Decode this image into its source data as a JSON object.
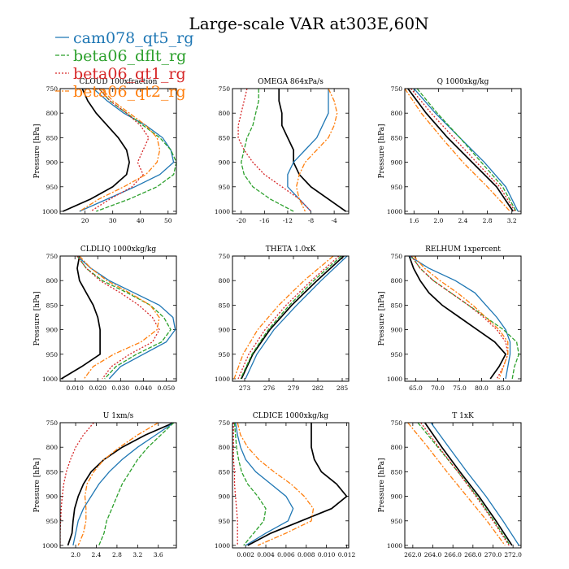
{
  "title": "Large-scale VAR at303E,60N",
  "legend": [
    {
      "name": "cam078_qt5_rg",
      "color": "#1f77b4"
    },
    {
      "name": "beta06_dflt_rg",
      "color": "#2ca02c"
    },
    {
      "name": "beta06_qt1_rg",
      "color": "#d62728"
    },
    {
      "name": "beta06_qt2_rg",
      "color": "#ff7f0e"
    }
  ],
  "control_color": "#000000",
  "chart_data": [
    {
      "type": "line",
      "title": "CLOUD 100xfraction",
      "ylabel": "Pressure [hPa]",
      "xlim": [
        11,
        53
      ],
      "ylim": [
        1005,
        750
      ],
      "xticks": [
        "20",
        "30",
        "40",
        "50"
      ],
      "xtick_values": [
        20,
        30,
        40,
        50
      ],
      "yticks": [
        750,
        800,
        850,
        900,
        950,
        1000
      ],
      "pressure": [
        750,
        775,
        800,
        825,
        850,
        875,
        900,
        925,
        950,
        975,
        1000
      ],
      "series": [
        {
          "color": "#000000",
          "values": [
            19,
            21,
            24,
            28,
            32,
            35,
            36,
            35,
            30,
            22,
            12
          ]
        },
        {
          "color": "#1f77b4",
          "values": [
            23,
            28,
            34,
            42,
            48,
            51,
            52,
            47,
            38,
            28,
            18
          ]
        },
        {
          "color": "#2ca02c",
          "values": [
            25,
            29,
            35,
            41,
            47,
            51,
            53,
            52,
            46,
            36,
            24
          ]
        },
        {
          "color": "#d62728",
          "values": [
            25,
            29,
            35,
            40,
            43,
            41,
            39,
            41,
            37,
            29,
            22
          ]
        },
        {
          "color": "#ff7f0e",
          "values": [
            26,
            30,
            36,
            42,
            46,
            47,
            46,
            42,
            34,
            25,
            18
          ]
        }
      ]
    },
    {
      "type": "line",
      "title": "OMEGA  864xPa/s",
      "ylabel": "",
      "xlim": [
        -21.5,
        -1.5
      ],
      "ylim": [
        1005,
        750
      ],
      "xticks": [
        "-20",
        "-16",
        "-12",
        "-8",
        "-4"
      ],
      "xtick_values": [
        -20,
        -16,
        -12,
        -8,
        -4
      ],
      "yticks": [
        750,
        800,
        850,
        900,
        950,
        1000
      ],
      "pressure": [
        750,
        775,
        800,
        825,
        850,
        875,
        900,
        925,
        950,
        975,
        1000
      ],
      "series": [
        {
          "color": "#000000",
          "values": [
            -13.5,
            -13.5,
            -13,
            -13,
            -12,
            -11,
            -11,
            -10,
            -8,
            -5,
            -2
          ]
        },
        {
          "color": "#1f77b4",
          "values": [
            -5,
            -5,
            -5,
            -6,
            -7,
            -9,
            -11,
            -12,
            -12,
            -10,
            -8
          ]
        },
        {
          "color": "#2ca02c",
          "values": [
            -17,
            -17,
            -17.5,
            -18,
            -19,
            -19.5,
            -20,
            -19.5,
            -18,
            -15,
            -11
          ]
        },
        {
          "color": "#d62728",
          "values": [
            -19,
            -19.5,
            -20,
            -20.5,
            -20.5,
            -19.5,
            -18,
            -16,
            -13,
            -10,
            -8
          ]
        },
        {
          "color": "#ff7f0e",
          "values": [
            -5,
            -4,
            -3.5,
            -4,
            -5,
            -7,
            -9,
            -10,
            -10.5,
            -10,
            -9
          ]
        }
      ]
    },
    {
      "type": "line",
      "title": "Q  1000xkg/kg",
      "ylabel": "Pressure [hPa]",
      "xlim": [
        1.45,
        3.35
      ],
      "ylim": [
        1005,
        750
      ],
      "xticks": [
        "1.6",
        "2.0",
        "2.4",
        "2.8",
        "3.2"
      ],
      "xtick_values": [
        1.6,
        2.0,
        2.4,
        2.8,
        3.2
      ],
      "yticks": [
        750,
        800,
        850,
        900,
        950,
        1000
      ],
      "pressure": [
        750,
        800,
        850,
        900,
        950,
        1000
      ],
      "series": [
        {
          "color": "#000000",
          "values": [
            1.5,
            1.8,
            2.15,
            2.55,
            2.95,
            3.22
          ]
        },
        {
          "color": "#1f77b4",
          "values": [
            1.6,
            1.95,
            2.35,
            2.75,
            3.1,
            3.3
          ]
        },
        {
          "color": "#2ca02c",
          "values": [
            1.65,
            1.98,
            2.35,
            2.7,
            3.05,
            3.27
          ]
        },
        {
          "color": "#d62728",
          "values": [
            1.55,
            1.88,
            2.25,
            2.62,
            3.0,
            3.25
          ]
        },
        {
          "color": "#ff7f0e",
          "values": [
            1.45,
            1.72,
            2.05,
            2.4,
            2.8,
            3.17
          ]
        }
      ]
    },
    {
      "type": "line",
      "title": "CLDLIQ  1000xkg/kg",
      "ylabel": "Pressure [hPa]",
      "xlim": [
        0.0035,
        0.0545
      ],
      "ylim": [
        1005,
        750
      ],
      "xticks": [
        "0.010",
        "0.020",
        "0.030",
        "0.040",
        "0.050"
      ],
      "xtick_values": [
        0.01,
        0.02,
        0.03,
        0.04,
        0.05
      ],
      "yticks": [
        750,
        800,
        850,
        900,
        950,
        1000
      ],
      "pressure": [
        750,
        775,
        800,
        825,
        850,
        875,
        900,
        925,
        950,
        975,
        1000
      ],
      "series": [
        {
          "color": "#000000",
          "values": [
            0.012,
            0.011,
            0.012,
            0.015,
            0.018,
            0.02,
            0.021,
            0.021,
            0.021,
            0.013,
            0.004
          ]
        },
        {
          "color": "#1f77b4",
          "values": [
            0.011,
            0.017,
            0.025,
            0.036,
            0.047,
            0.053,
            0.054,
            0.05,
            0.04,
            0.03,
            0.025
          ]
        },
        {
          "color": "#2ca02c",
          "values": [
            0.011,
            0.015,
            0.022,
            0.033,
            0.043,
            0.049,
            0.052,
            0.048,
            0.037,
            0.028,
            0.023
          ]
        },
        {
          "color": "#d62728",
          "values": [
            0.011,
            0.015,
            0.021,
            0.03,
            0.038,
            0.044,
            0.047,
            0.044,
            0.034,
            0.026,
            0.022
          ]
        },
        {
          "color": "#ff7f0e",
          "values": [
            0.012,
            0.017,
            0.024,
            0.034,
            0.043,
            0.047,
            0.046,
            0.039,
            0.027,
            0.018,
            0.014
          ]
        }
      ]
    },
    {
      "type": "line",
      "title": "THETA  1.0xK",
      "ylabel": "",
      "xlim": [
        271.5,
        285.8
      ],
      "ylim": [
        1005,
        750
      ],
      "xticks": [
        "273",
        "276",
        "279",
        "282",
        "285"
      ],
      "xtick_values": [
        273,
        276,
        279,
        282,
        285
      ],
      "yticks": [
        750,
        800,
        850,
        900,
        950,
        1000
      ],
      "pressure": [
        750,
        800,
        850,
        900,
        950,
        1000
      ],
      "series": [
        {
          "color": "#000000",
          "values": [
            285.2,
            281.9,
            278.8,
            276.1,
            274.0,
            272.6
          ]
        },
        {
          "color": "#1f77b4",
          "values": [
            285.6,
            282.4,
            279.4,
            276.6,
            274.5,
            273.1
          ]
        },
        {
          "color": "#2ca02c",
          "values": [
            284.9,
            281.5,
            278.5,
            275.9,
            273.9,
            272.5
          ]
        },
        {
          "color": "#d62728",
          "values": [
            284.6,
            281.2,
            278.1,
            275.5,
            273.5,
            272.2
          ]
        },
        {
          "color": "#ff7f0e",
          "values": [
            283.9,
            280.3,
            277.2,
            274.6,
            272.8,
            271.7
          ]
        }
      ]
    },
    {
      "type": "line",
      "title": "RELHUM  1xpercent",
      "ylabel": "Pressure [hPa]",
      "xlim": [
        62.5,
        89.0
      ],
      "ylim": [
        1005,
        750
      ],
      "xticks": [
        "65.0",
        "70.0",
        "75.0",
        "80.0",
        "85.0"
      ],
      "xtick_values": [
        65,
        70,
        75,
        80,
        85
      ],
      "yticks": [
        750,
        800,
        850,
        900,
        950,
        1000
      ],
      "pressure": [
        750,
        775,
        800,
        825,
        850,
        875,
        900,
        925,
        950,
        975,
        1000
      ],
      "series": [
        {
          "color": "#000000",
          "values": [
            63.5,
            64.5,
            66,
            68,
            71,
            75,
            79,
            83,
            85.5,
            84,
            82
          ]
        },
        {
          "color": "#1f77b4",
          "values": [
            63.5,
            68,
            74,
            78.5,
            81,
            83.5,
            85.5,
            86.5,
            86.5,
            86,
            85.5
          ]
        },
        {
          "color": "#2ca02c",
          "values": [
            64,
            66,
            69,
            73,
            77,
            81,
            85,
            88,
            88.5,
            87.5,
            87
          ]
        },
        {
          "color": "#d62728",
          "values": [
            64,
            66,
            69,
            73,
            77,
            80.5,
            83.5,
            85.5,
            86,
            85,
            83.5
          ]
        },
        {
          "color": "#ff7f0e",
          "values": [
            64.5,
            67,
            70.5,
            74.5,
            78,
            81,
            84,
            86,
            86,
            85,
            84
          ]
        }
      ]
    },
    {
      "type": "line",
      "title": "U  1xm/s",
      "ylabel": "Pressure [hPa]",
      "xlim": [
        1.7,
        3.95
      ],
      "ylim": [
        1005,
        750
      ],
      "xticks": [
        "2.0",
        "2.4",
        "2.8",
        "3.2",
        "3.6"
      ],
      "xtick_values": [
        2.0,
        2.4,
        2.8,
        3.2,
        3.6
      ],
      "yticks": [
        750,
        800,
        850,
        900,
        950,
        1000
      ],
      "pressure": [
        750,
        775,
        800,
        825,
        850,
        875,
        900,
        925,
        950,
        975,
        1000
      ],
      "series": [
        {
          "color": "#000000",
          "values": [
            3.9,
            3.35,
            2.9,
            2.55,
            2.3,
            2.15,
            2.05,
            1.98,
            1.95,
            1.93,
            1.85
          ]
        },
        {
          "color": "#1f77b4",
          "values": [
            3.9,
            3.55,
            3.2,
            2.9,
            2.65,
            2.45,
            2.3,
            2.15,
            2.05,
            2.0,
            1.95
          ]
        },
        {
          "color": "#2ca02c",
          "values": [
            3.9,
            3.65,
            3.4,
            3.2,
            3.05,
            2.9,
            2.8,
            2.7,
            2.6,
            2.55,
            2.45
          ]
        },
        {
          "color": "#d62728",
          "values": [
            2.35,
            2.15,
            2.0,
            1.9,
            1.82,
            1.77,
            1.74,
            1.72,
            1.71,
            1.7,
            1.7
          ]
        },
        {
          "color": "#ff7f0e",
          "values": [
            3.6,
            3.2,
            2.85,
            2.55,
            2.35,
            2.22,
            2.18,
            2.2,
            2.2,
            2.15,
            2.05
          ]
        }
      ]
    },
    {
      "type": "line",
      "title": "CLDICE  1000xkg/kg",
      "ylabel": "",
      "xlim": [
        0.0007,
        0.0122
      ],
      "ylim": [
        1005,
        750
      ],
      "xticks": [
        "0.002",
        "0.004",
        "0.006",
        "0.008",
        "0.010",
        "0.012"
      ],
      "xtick_values": [
        0.002,
        0.004,
        0.006,
        0.008,
        0.01,
        0.012
      ],
      "yticks": [
        750,
        800,
        850,
        900,
        950,
        1000
      ],
      "pressure": [
        750,
        775,
        800,
        825,
        850,
        875,
        900,
        925,
        950,
        975,
        1000
      ],
      "series": [
        {
          "color": "#000000",
          "values": [
            0.0085,
            0.0085,
            0.0085,
            0.0088,
            0.0095,
            0.011,
            0.012,
            0.0105,
            0.0075,
            0.0045,
            0.0022
          ]
        },
        {
          "color": "#1f77b4",
          "values": [
            0.001,
            0.0012,
            0.0015,
            0.002,
            0.003,
            0.0045,
            0.006,
            0.0067,
            0.0062,
            0.004,
            0.002
          ]
        },
        {
          "color": "#2ca02c",
          "values": [
            0.0009,
            0.001,
            0.0011,
            0.0013,
            0.0016,
            0.0022,
            0.0032,
            0.004,
            0.0038,
            0.0028,
            0.0018
          ]
        },
        {
          "color": "#d62728",
          "values": [
            0.0008,
            0.0008,
            0.0008,
            0.0008,
            0.0009,
            0.0009,
            0.001,
            0.0011,
            0.0012,
            0.0012,
            0.0012
          ]
        },
        {
          "color": "#ff7f0e",
          "values": [
            0.0012,
            0.0015,
            0.0022,
            0.0033,
            0.0048,
            0.0065,
            0.0078,
            0.0087,
            0.0085,
            0.006,
            0.0032
          ]
        }
      ]
    },
    {
      "type": "line",
      "title": "T  1xK",
      "ylabel": "Pressure [hPa]",
      "xlim": [
        261.2,
        272.8
      ],
      "ylim": [
        1005,
        750
      ],
      "xticks": [
        "262.0",
        "264.0",
        "266.0",
        "268.0",
        "270.0",
        "272.0"
      ],
      "xtick_values": [
        262,
        264,
        266,
        268,
        270,
        272
      ],
      "yticks": [
        750,
        800,
        850,
        900,
        950,
        1000
      ],
      "pressure": [
        750,
        800,
        850,
        900,
        950,
        1000
      ],
      "series": [
        {
          "color": "#000000",
          "values": [
            263.2,
            264.9,
            266.7,
            268.6,
            270.3,
            271.9
          ]
        },
        {
          "color": "#1f77b4",
          "values": [
            263.8,
            265.6,
            267.4,
            269.3,
            271.0,
            272.6
          ]
        },
        {
          "color": "#2ca02c",
          "values": [
            262.5,
            264.5,
            266.5,
            268.4,
            270.1,
            271.7
          ]
        },
        {
          "color": "#d62728",
          "values": [
            262.8,
            264.6,
            266.5,
            268.3,
            270.0,
            271.6
          ]
        },
        {
          "color": "#ff7f0e",
          "values": [
            261.5,
            263.5,
            265.4,
            267.4,
            269.4,
            271.2
          ]
        }
      ]
    }
  ]
}
